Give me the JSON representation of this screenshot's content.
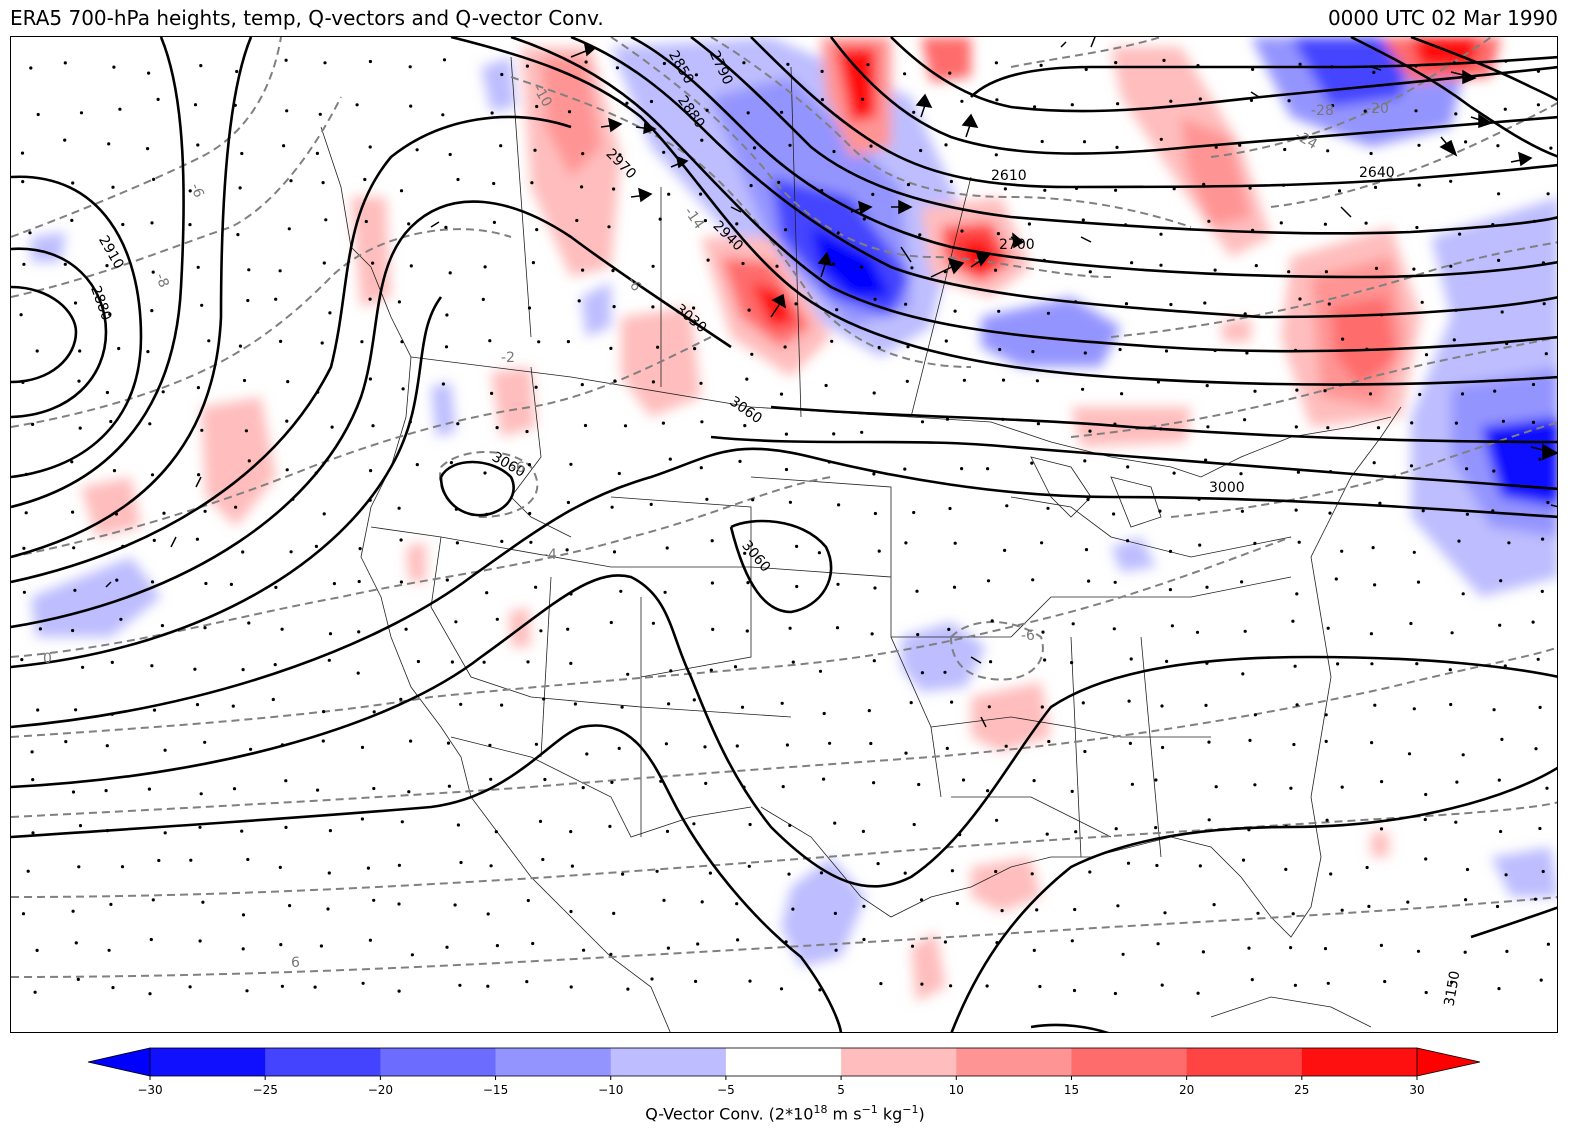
{
  "title_left": "ERA5 700-hPa heights, temp, Q-vectors and Q-vector Conv.",
  "title_right": "0000 UTC 02 Mar 1990",
  "colorbar": {
    "label_main": "Q-Vector Conv. (2*10",
    "label_exp": "18",
    "label_units": " m s",
    "label_exp2": "−1",
    "label_units2": " kg",
    "label_exp3": "−1",
    "label_close": ")",
    "ticks": [
      "−30",
      "−25",
      "−20",
      "−15",
      "−10",
      "−5",
      "5",
      "10",
      "15",
      "20",
      "25",
      "30"
    ],
    "colors": [
      "#1010ff",
      "#4444ff",
      "#6c6cff",
      "#9494ff",
      "#bdbdff",
      "#ffffff",
      "#ffbdbd",
      "#ff9494",
      "#ff6c6c",
      "#ff4444",
      "#ff1010"
    ],
    "extend_min_color": "#0000ff",
    "extend_max_color": "#ff0000"
  },
  "height_labels": [
    "2910",
    "2880",
    "2850",
    "2790",
    "2880",
    "2970",
    "2940",
    "3030",
    "3060",
    "3060",
    "3060",
    "2610",
    "2700",
    "2640",
    "3000",
    "3150"
  ],
  "temp_labels": [
    "-6",
    "-8",
    "-6",
    "-2",
    "-6",
    "-4",
    "-6",
    "0",
    "6",
    "-14",
    "-10",
    "-28",
    "-24",
    "-20"
  ],
  "colors": {
    "height_contour": "#000000",
    "temp_contour": "#808080",
    "boundaries": "#222222"
  }
}
